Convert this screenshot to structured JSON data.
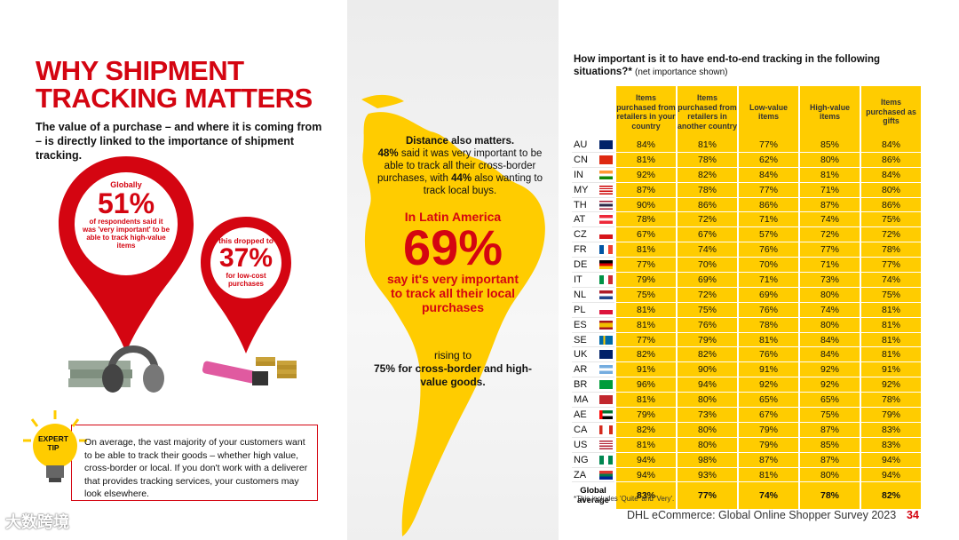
{
  "left": {
    "title_line1": "WHY SHIPMENT",
    "title_line2": "TRACKING MATTERS",
    "subtitle": "The value of a purchase – and where it is coming from – is directly linked to the importance of shipment tracking.",
    "pin_big": {
      "label_top": "Globally",
      "value": "51%",
      "label_bottom": "of respondents said it was 'very important' to be able to track high-value items"
    },
    "pin_small": {
      "label_top": "this dropped to",
      "value": "37%",
      "label_bottom": "for low-cost purchases"
    },
    "expert_tip_label": "EXPERT TIP",
    "expert_tip_text": "On average, the vast majority of your customers want to be able to track their goods – whether high value, cross-border or local. If you don't work with a deliverer that provides tracking services, your customers may look elsewhere."
  },
  "middle": {
    "distance_heading": "Distance also matters.",
    "distance_text_a": "48%",
    "distance_text_b": " said it was very important to be able to track all their cross-border purchases, with ",
    "distance_text_c": "44%",
    "distance_text_d": " also wanting to track local buys.",
    "latam_label": "In Latin America",
    "latam_value": "69%",
    "latam_caption": "say it's very important to track all their local purchases",
    "rising_label": "rising to",
    "rising_value": "75% for cross-border and high-value goods."
  },
  "right": {
    "question": "How important is it to have end-to-end tracking in the following situations?*",
    "question_note": "(net importance shown)",
    "columns": [
      "Items purchased from retailers in your country",
      "Items purchased from retailers in another country",
      "Low-value items",
      "High-value items",
      "Items purchased as gifts"
    ],
    "rows": [
      {
        "code": "AU",
        "values": [
          "84%",
          "81%",
          "77%",
          "85%",
          "84%"
        ]
      },
      {
        "code": "CN",
        "values": [
          "81%",
          "78%",
          "62%",
          "80%",
          "86%"
        ]
      },
      {
        "code": "IN",
        "values": [
          "92%",
          "82%",
          "84%",
          "81%",
          "84%"
        ]
      },
      {
        "code": "MY",
        "values": [
          "87%",
          "78%",
          "77%",
          "71%",
          "80%"
        ]
      },
      {
        "code": "TH",
        "values": [
          "90%",
          "86%",
          "86%",
          "87%",
          "86%"
        ]
      },
      {
        "code": "AT",
        "values": [
          "78%",
          "72%",
          "71%",
          "74%",
          "75%"
        ]
      },
      {
        "code": "CZ",
        "values": [
          "67%",
          "67%",
          "57%",
          "72%",
          "72%"
        ]
      },
      {
        "code": "FR",
        "values": [
          "81%",
          "74%",
          "76%",
          "77%",
          "78%"
        ]
      },
      {
        "code": "DE",
        "values": [
          "77%",
          "70%",
          "70%",
          "71%",
          "77%"
        ]
      },
      {
        "code": "IT",
        "values": [
          "79%",
          "69%",
          "71%",
          "73%",
          "74%"
        ]
      },
      {
        "code": "NL",
        "values": [
          "75%",
          "72%",
          "69%",
          "80%",
          "75%"
        ]
      },
      {
        "code": "PL",
        "values": [
          "81%",
          "75%",
          "76%",
          "74%",
          "81%"
        ]
      },
      {
        "code": "ES",
        "values": [
          "81%",
          "76%",
          "78%",
          "80%",
          "81%"
        ]
      },
      {
        "code": "SE",
        "values": [
          "77%",
          "79%",
          "81%",
          "84%",
          "81%"
        ]
      },
      {
        "code": "UK",
        "values": [
          "82%",
          "82%",
          "76%",
          "84%",
          "81%"
        ]
      },
      {
        "code": "AR",
        "values": [
          "91%",
          "90%",
          "91%",
          "92%",
          "91%"
        ]
      },
      {
        "code": "BR",
        "values": [
          "96%",
          "94%",
          "92%",
          "92%",
          "92%"
        ]
      },
      {
        "code": "MA",
        "values": [
          "81%",
          "80%",
          "65%",
          "65%",
          "78%"
        ]
      },
      {
        "code": "AE",
        "values": [
          "79%",
          "73%",
          "67%",
          "75%",
          "79%"
        ]
      },
      {
        "code": "CA",
        "values": [
          "82%",
          "80%",
          "79%",
          "87%",
          "83%"
        ]
      },
      {
        "code": "US",
        "values": [
          "81%",
          "80%",
          "79%",
          "85%",
          "83%"
        ]
      },
      {
        "code": "NG",
        "values": [
          "94%",
          "98%",
          "87%",
          "87%",
          "94%"
        ]
      },
      {
        "code": "ZA",
        "values": [
          "94%",
          "93%",
          "81%",
          "80%",
          "94%"
        ]
      }
    ],
    "global_label": "Global average",
    "global_values": [
      "83%",
      "77%",
      "74%",
      "78%",
      "82%"
    ],
    "footnote": "*This includes 'Quite' and 'Very'.",
    "footer": "DHL eCommerce: Global Online Shopper Survey 2023",
    "page_number": "34"
  },
  "watermark": "大数跨境",
  "colors": {
    "dhl_red": "#d40511",
    "dhl_yellow": "#ffcc00"
  }
}
